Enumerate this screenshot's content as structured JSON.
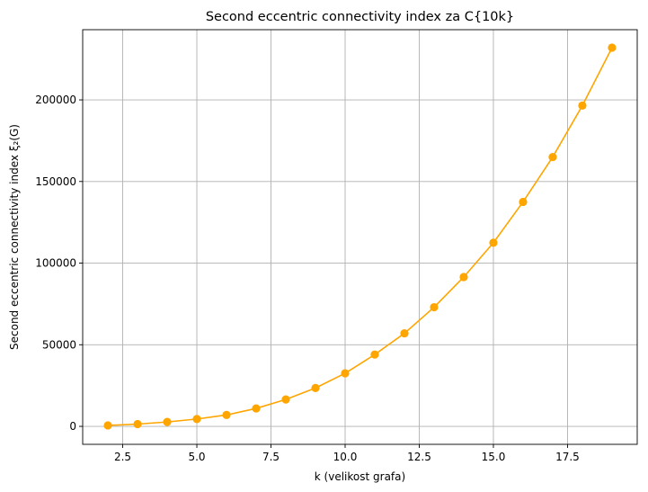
{
  "chart_data": {
    "type": "line",
    "title": "Second eccentric connectivity index za C{10k}",
    "xlabel": "k (velikost grafa)",
    "ylabel": "Second eccentric connectivity index ξ₂(G)",
    "xlim": [
      1.15,
      19.85
    ],
    "ylim": [
      -11000,
      243000
    ],
    "xticks": [
      2.5,
      5.0,
      7.5,
      10.0,
      12.5,
      15.0,
      17.5
    ],
    "xtick_labels": [
      "2.5",
      "5.0",
      "7.5",
      "10.0",
      "12.5",
      "15.0",
      "17.5"
    ],
    "yticks": [
      0,
      50000,
      100000,
      150000,
      200000
    ],
    "ytick_labels": [
      "0",
      "50000",
      "100000",
      "150000",
      "200000"
    ],
    "grid": true,
    "legend": "none",
    "series": [
      {
        "color": "#FFA500",
        "marker": "circle",
        "x": [
          2,
          3,
          4,
          5,
          6,
          7,
          8,
          9,
          10,
          11,
          12,
          13,
          14,
          15,
          16,
          17,
          18,
          19
        ],
        "y": [
          600,
          1400,
          2700,
          4500,
          7000,
          11000,
          16500,
          23500,
          32500,
          44000,
          57000,
          73000,
          91500,
          112500,
          137500,
          165000,
          196500,
          232000
        ]
      }
    ]
  }
}
